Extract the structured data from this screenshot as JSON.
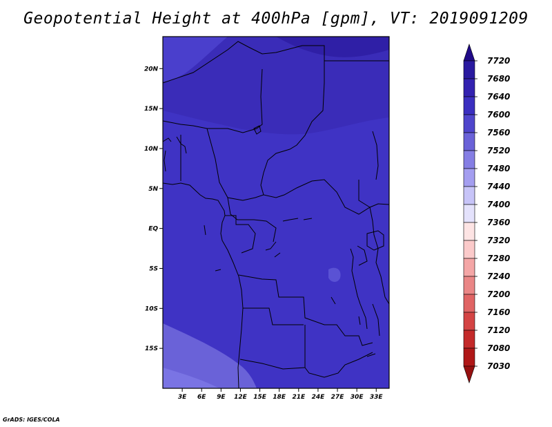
{
  "title": "Geopotential Height at 400hPa [gpm], VT: 2019091209",
  "credit": "GrADS: IGES/COLA",
  "map": {
    "lon_range": [
      0,
      35
    ],
    "lat_range": [
      -20,
      24
    ],
    "lon_ticks": [
      "3E",
      "6E",
      "9E",
      "12E",
      "15E",
      "18E",
      "21E",
      "24E",
      "27E",
      "30E",
      "33E"
    ],
    "lat_ticks": [
      "20N",
      "15N",
      "10N",
      "5N",
      "EQ",
      "5S",
      "10S",
      "15S"
    ]
  },
  "colorbar": {
    "labels": [
      "7720",
      "7680",
      "7640",
      "7600",
      "7560",
      "7520",
      "7480",
      "7440",
      "7400",
      "7360",
      "7320",
      "7280",
      "7240",
      "7200",
      "7160",
      "7120",
      "7080",
      "7030"
    ],
    "colors": [
      "#200a88",
      "#2a1aa0",
      "#3322b0",
      "#3b2fc0",
      "#4f45cc",
      "#6a62d8",
      "#857ee4",
      "#a49ef0",
      "#c7c4f8",
      "#e4e2fc",
      "#fde4e4",
      "#fbcaca",
      "#f4a6a6",
      "#ea8686",
      "#e06464",
      "#d44444",
      "#c42a2a",
      "#b01818",
      "#961010"
    ]
  }
}
